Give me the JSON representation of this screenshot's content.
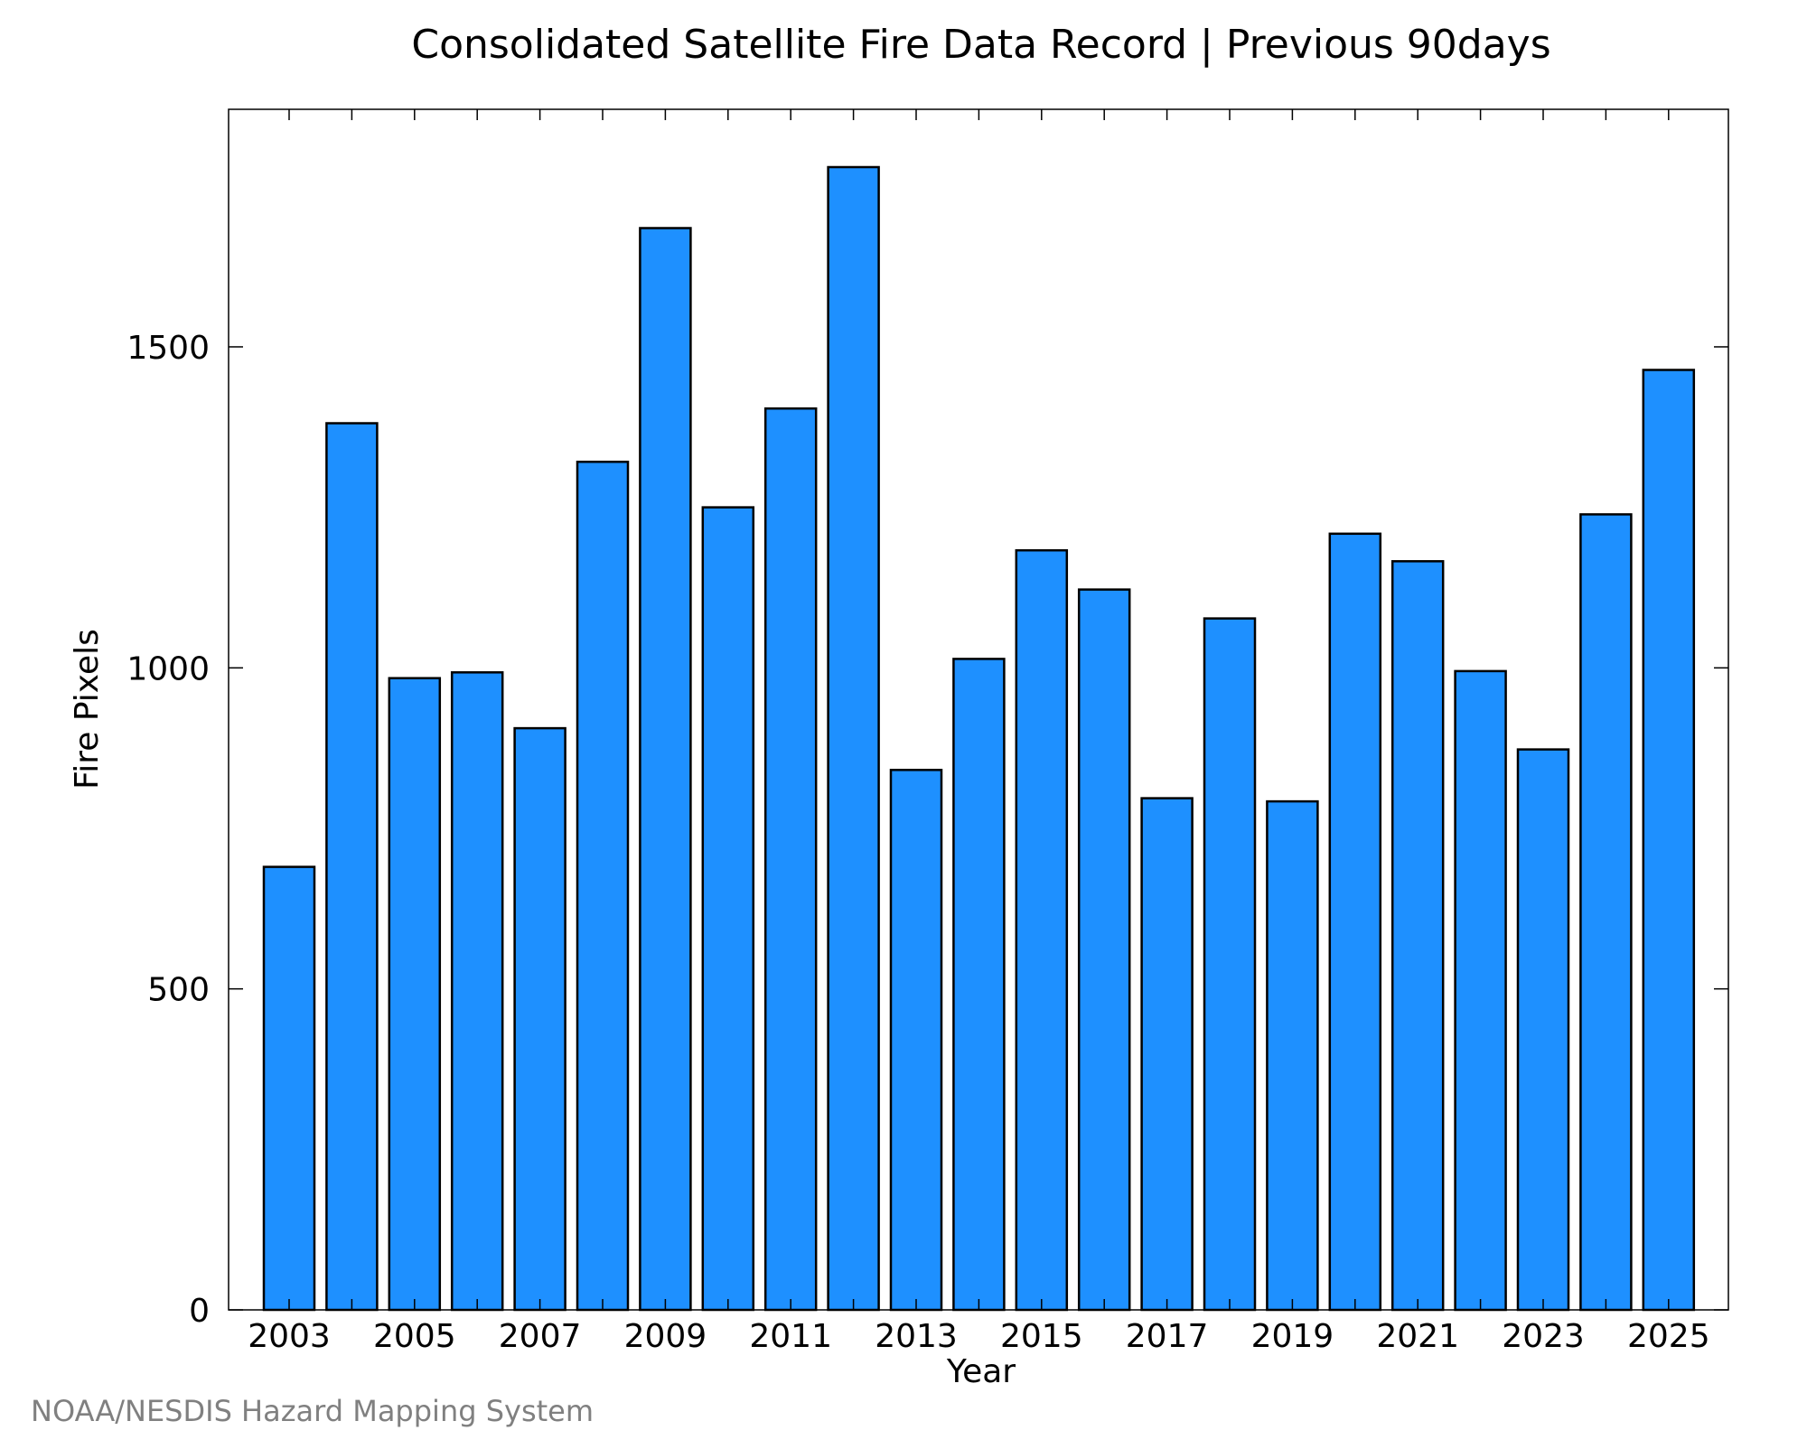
{
  "chart_data": {
    "type": "bar",
    "title": "Consolidated Satellite Fire Data Record | Previous 90days",
    "xlabel": "Year",
    "ylabel": "Fire Pixels",
    "categories": [
      "2003",
      "2004",
      "2005",
      "2006",
      "2007",
      "2008",
      "2009",
      "2010",
      "2011",
      "2012",
      "2013",
      "2014",
      "2015",
      "2016",
      "2017",
      "2018",
      "2019",
      "2020",
      "2021",
      "2022",
      "2023",
      "2024",
      "2025"
    ],
    "values": [
      690,
      1381,
      984,
      993,
      906,
      1321,
      1685,
      1250,
      1404,
      1780,
      841,
      1014,
      1183,
      1122,
      797,
      1077,
      792,
      1209,
      1166,
      995,
      873,
      1239,
      1464
    ],
    "x_tick_labels": [
      "2003",
      "2005",
      "2007",
      "2009",
      "2011",
      "2013",
      "2015",
      "2017",
      "2019",
      "2021",
      "2023",
      "2025"
    ],
    "y_ticks": [
      0,
      500,
      1000,
      1500
    ],
    "ylim": [
      0,
      1870
    ],
    "grid": false,
    "legend": "none",
    "bar_color": "#1e90ff",
    "edge_color": "#000000"
  },
  "footer": {
    "credit": "NOAA/NESDIS Hazard Mapping System"
  },
  "colors": {
    "credit_text": "#808080"
  }
}
